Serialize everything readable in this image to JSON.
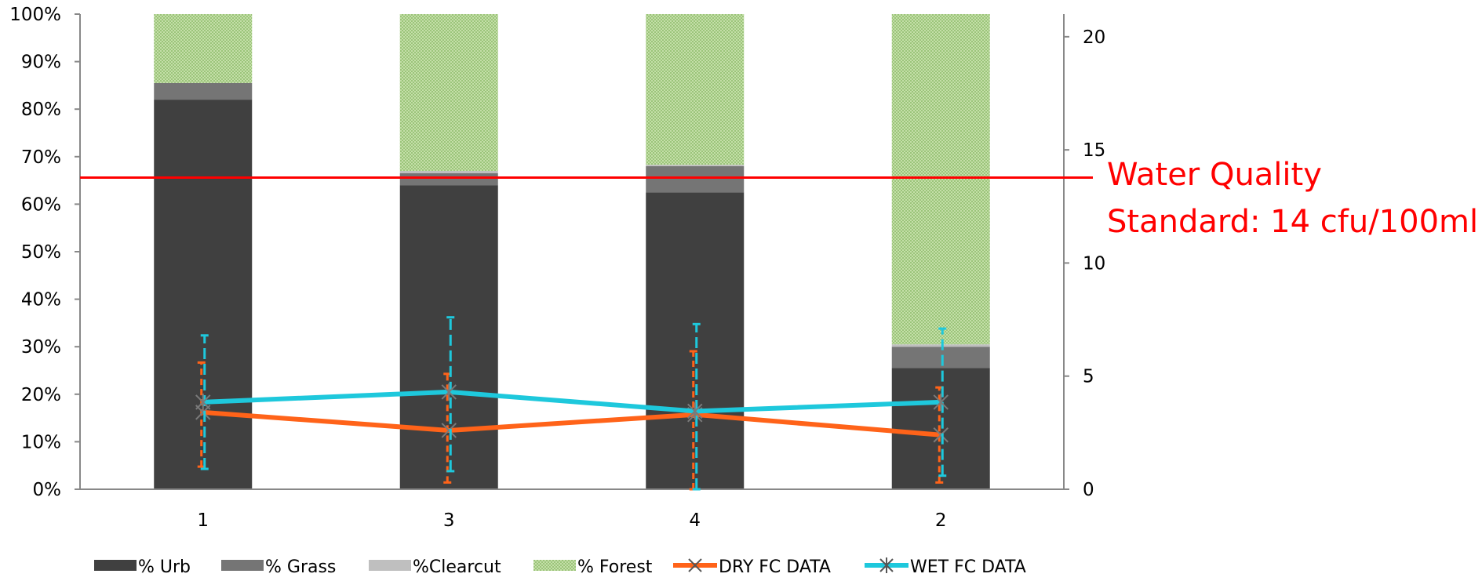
{
  "chart_data": {
    "type": "bar",
    "stacked_percent": true,
    "categories": [
      "1",
      "3",
      "4",
      "2"
    ],
    "series": [
      {
        "name": "% Urb",
        "kind": "bar",
        "axis": "left",
        "color": "#404040",
        "values": [
          82,
          64,
          62.5,
          25.5
        ]
      },
      {
        "name": "% Grass",
        "kind": "bar",
        "axis": "left",
        "color": "#757575",
        "values": [
          3.5,
          2.5,
          5.5,
          4.5
        ]
      },
      {
        "name": "%Clearcut",
        "kind": "bar",
        "axis": "left",
        "color": "#bfbfbf",
        "values": [
          0,
          0.5,
          0.3,
          0.5
        ]
      },
      {
        "name": "% Forest",
        "kind": "bar",
        "axis": "left",
        "color": "#9bc47a",
        "values": [
          14.5,
          33,
          31.7,
          69.5
        ]
      },
      {
        "name": "DRY FC DATA",
        "kind": "line",
        "axis": "right",
        "color": "#ff6319",
        "values": [
          3.4,
          2.6,
          3.3,
          2.4
        ],
        "error_low": [
          1.0,
          0.3,
          0.0,
          0.3
        ],
        "error_high": [
          5.6,
          5.1,
          6.1,
          4.5
        ]
      },
      {
        "name": "WET FC DATA",
        "kind": "line",
        "axis": "right",
        "color": "#1ec8dc",
        "values": [
          3.85,
          4.3,
          3.45,
          3.85
        ],
        "error_low": [
          0.9,
          0.8,
          0.0,
          0.6
        ],
        "error_high": [
          6.8,
          7.6,
          7.3,
          7.1
        ]
      }
    ],
    "y_left": {
      "min": 0,
      "max": 100,
      "ticks": [
        "0%",
        "10%",
        "20%",
        "30%",
        "40%",
        "50%",
        "60%",
        "70%",
        "80%",
        "90%",
        "100%"
      ]
    },
    "y_right": {
      "min": 0,
      "max": 21,
      "ticks": [
        "0",
        "5",
        "10",
        "15",
        "20"
      ],
      "tick_values": [
        0,
        5,
        10,
        15,
        20
      ]
    },
    "reference_line": {
      "value_percent": 65.6,
      "color": "#ff0000",
      "label_lines": [
        "Water Quality",
        "Standard: 14 cfu/100ml"
      ]
    },
    "legend_position": "bottom",
    "grid": false
  }
}
